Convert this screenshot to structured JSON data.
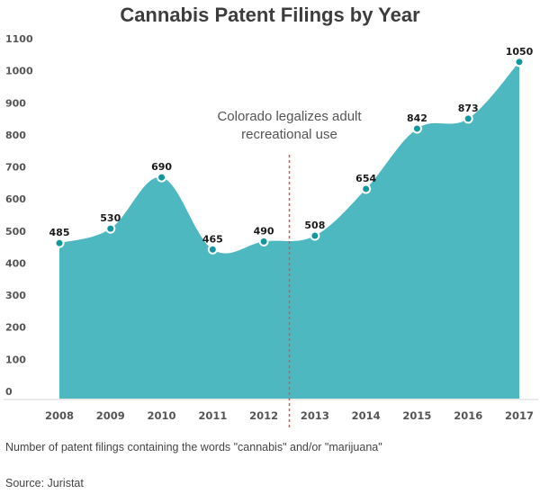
{
  "title": "Cannabis Patent Filings by Year",
  "note": "Number of patent filings containing the words \"cannabis\" and/or \"marijuana\"",
  "source": "Source: Juristat",
  "colors": {
    "area": "#4db8c0",
    "point": "#12979e",
    "point_stroke": "#ffffff",
    "annotation_line": "#d9535b",
    "axis": "#e3e3e3"
  },
  "chart_data": {
    "type": "area",
    "title": "Cannabis Patent Filings by Year",
    "xlabel": "",
    "ylabel": "",
    "categories": [
      "2008",
      "2009",
      "2010",
      "2011",
      "2012",
      "2013",
      "2014",
      "2015",
      "2016",
      "2017"
    ],
    "values": [
      485,
      530,
      690,
      465,
      490,
      508,
      654,
      842,
      873,
      1050
    ],
    "data_labels": [
      "485",
      "530",
      "690",
      "465",
      "490",
      "508",
      "654",
      "842",
      "873",
      "1050"
    ],
    "ylim": [
      0,
      1100
    ],
    "yticks": [
      "0",
      "100",
      "200",
      "300",
      "400",
      "500",
      "600",
      "700",
      "800",
      "900",
      "1000",
      "1100"
    ],
    "grid": false,
    "legend": "none",
    "annotation": {
      "text_lines": [
        "Colorado legalizes adult",
        "recreational use"
      ],
      "between": [
        "2012",
        "2013"
      ],
      "style": "dashed vertical line"
    }
  }
}
